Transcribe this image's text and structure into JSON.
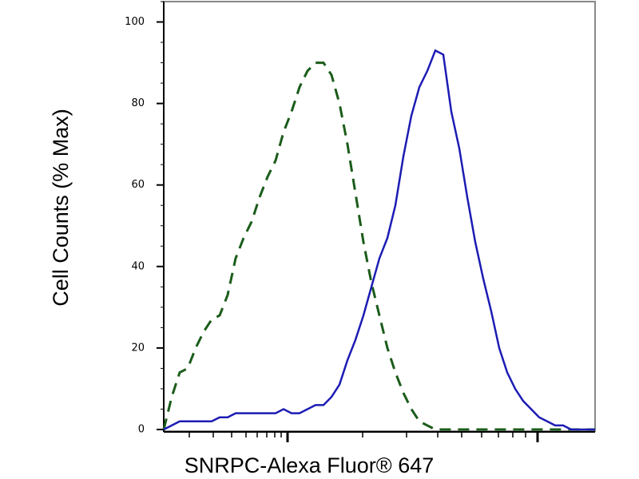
{
  "chart_data": {
    "type": "line",
    "ylabel": "Cell Counts (% Max)",
    "xlabel": "SNRPC-Alexa Fluor® 647",
    "ylim": [
      0,
      105
    ],
    "yticks": [
      0,
      20,
      40,
      60,
      80,
      100
    ],
    "series": [
      {
        "color": "#1a5c1a",
        "dashed": true,
        "values": [
          0,
          8,
          14,
          15,
          20,
          24,
          27,
          28,
          33,
          42,
          47,
          51,
          57,
          62,
          66,
          73,
          78,
          84,
          88,
          90,
          90,
          87,
          80,
          70,
          58,
          46,
          36,
          28,
          20,
          14,
          9,
          5,
          2,
          1,
          0,
          0,
          0,
          0,
          0,
          0,
          0,
          0,
          0,
          0,
          0,
          0,
          0,
          0,
          0,
          0,
          0,
          0,
          0,
          0,
          0
        ]
      },
      {
        "color": "#1c1cb4",
        "dashed": false,
        "values": [
          0,
          1,
          2,
          2,
          2,
          2,
          2,
          3,
          3,
          4,
          4,
          4,
          4,
          4,
          4,
          5,
          4,
          4,
          5,
          6,
          6,
          8,
          11,
          17,
          22,
          28,
          35,
          42,
          47,
          55,
          67,
          77,
          84,
          88,
          93,
          92,
          78,
          69,
          57,
          46,
          37,
          29,
          20,
          14,
          10,
          7,
          5,
          3,
          2,
          1,
          1,
          0,
          0,
          0,
          0
        ]
      }
    ]
  }
}
